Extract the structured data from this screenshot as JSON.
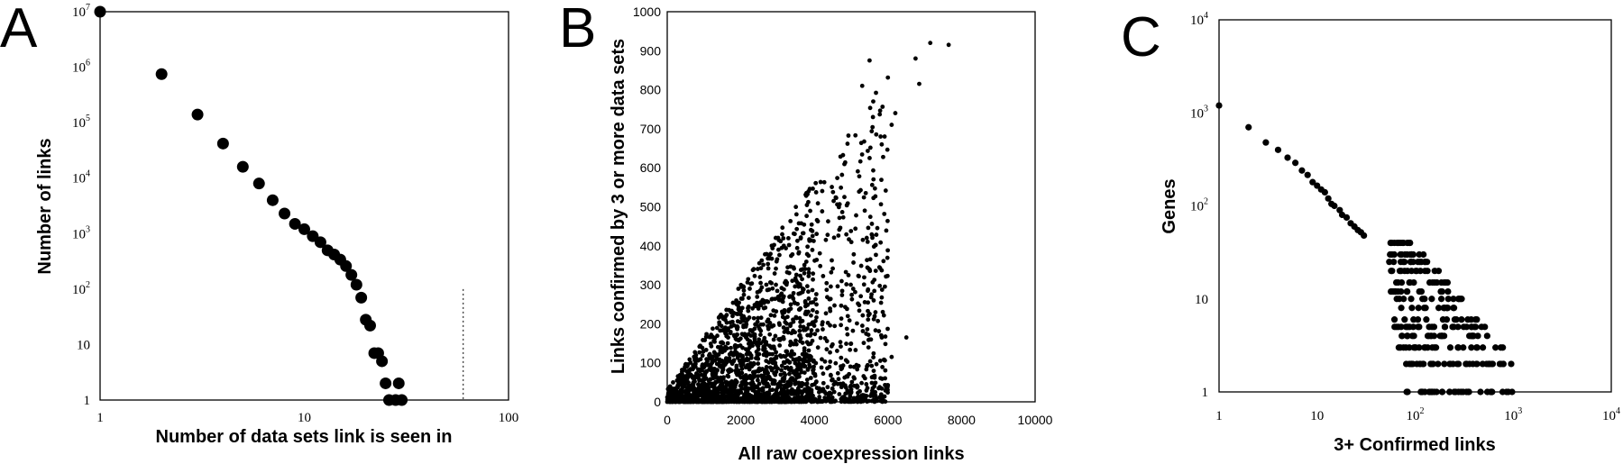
{
  "chart_data": [
    {
      "panel": "A",
      "type": "scatter",
      "xlabel": "Number of data sets link is seen in",
      "ylabel": "Number of links",
      "xscale": "log",
      "yscale": "log",
      "xlim": [
        1,
        100
      ],
      "ylim": [
        1,
        10000000
      ],
      "x_ticks": [
        {
          "base": "1",
          "exp": ""
        },
        {
          "base": "10",
          "exp": ""
        },
        {
          "base": "100",
          "exp": ""
        }
      ],
      "y_ticks": [
        {
          "base": "1",
          "exp": ""
        },
        {
          "base": "10",
          "exp": ""
        },
        {
          "base": "10",
          "exp": "2"
        },
        {
          "base": "10",
          "exp": "3"
        },
        {
          "base": "10",
          "exp": "4"
        },
        {
          "base": "10",
          "exp": "5"
        },
        {
          "base": "10",
          "exp": "6"
        },
        {
          "base": "10",
          "exp": "7"
        }
      ],
      "reference_line_x": 60,
      "points": [
        [
          1,
          10000000
        ],
        [
          2,
          750000
        ],
        [
          3,
          140000
        ],
        [
          4,
          42000
        ],
        [
          5,
          16000
        ],
        [
          6,
          8000
        ],
        [
          7,
          4000
        ],
        [
          8,
          2300
        ],
        [
          9,
          1500
        ],
        [
          10,
          1200
        ],
        [
          11,
          900
        ],
        [
          12,
          700
        ],
        [
          13,
          500
        ],
        [
          14,
          420
        ],
        [
          15,
          340
        ],
        [
          16,
          260
        ],
        [
          17,
          180
        ],
        [
          18,
          120
        ],
        [
          19,
          70
        ],
        [
          20,
          28
        ],
        [
          21,
          22
        ],
        [
          22,
          7
        ],
        [
          23,
          7
        ],
        [
          24,
          5
        ],
        [
          25,
          2
        ],
        [
          26,
          1
        ],
        [
          28,
          1
        ],
        [
          29,
          2
        ],
        [
          30,
          1
        ]
      ]
    },
    {
      "panel": "B",
      "type": "scatter",
      "xlabel": "All raw coexpression links",
      "ylabel": "Links confirmed by 3 or more data sets",
      "xlim": [
        0,
        10000
      ],
      "ylim": [
        0,
        1000
      ],
      "x_ticks": [
        "0",
        "2000",
        "4000",
        "6000",
        "8000",
        "10000"
      ],
      "y_ticks": [
        "0",
        "100",
        "200",
        "300",
        "400",
        "500",
        "600",
        "700",
        "800",
        "900",
        "1000"
      ],
      "notable_points": [
        [
          7150,
          920
        ],
        [
          7650,
          915
        ],
        [
          6750,
          880
        ],
        [
          6850,
          815
        ],
        [
          5500,
          875
        ],
        [
          5300,
          810
        ],
        [
          5600,
          770
        ],
        [
          6200,
          740
        ],
        [
          6100,
          710
        ],
        [
          5800,
          680
        ],
        [
          6500,
          165
        ],
        [
          6100,
          115
        ],
        [
          5500,
          160
        ]
      ],
      "density_summary": "dense cloud of points near origin extending to roughly (6000, 600) with upper envelope y ≈ 0.13·x"
    },
    {
      "panel": "C",
      "type": "scatter",
      "xlabel": "3+ Confirmed links",
      "ylabel": "Genes",
      "xscale": "log",
      "yscale": "log",
      "xlim": [
        1,
        10000
      ],
      "ylim": [
        1,
        10000
      ],
      "x_ticks": [
        {
          "base": "1",
          "exp": ""
        },
        {
          "base": "10",
          "exp": ""
        },
        {
          "base": "10",
          "exp": "2"
        },
        {
          "base": "10",
          "exp": "3"
        },
        {
          "base": "10",
          "exp": "4"
        }
      ],
      "y_ticks": [
        {
          "base": "1",
          "exp": ""
        },
        {
          "base": "10",
          "exp": ""
        },
        {
          "base": "10",
          "exp": "2"
        },
        {
          "base": "10",
          "exp": "3"
        },
        {
          "base": "10",
          "exp": "4"
        }
      ],
      "points": [
        [
          1,
          1200
        ],
        [
          2,
          700
        ],
        [
          3,
          480
        ],
        [
          4,
          400
        ],
        [
          5,
          330
        ],
        [
          6,
          290
        ],
        [
          7,
          240
        ],
        [
          8,
          215
        ],
        [
          9,
          180
        ],
        [
          10,
          165
        ],
        [
          11,
          150
        ],
        [
          12,
          140
        ],
        [
          13,
          120
        ],
        [
          14,
          105
        ],
        [
          15,
          100
        ],
        [
          17,
          90
        ],
        [
          18,
          80
        ],
        [
          20,
          75
        ],
        [
          22,
          65
        ],
        [
          24,
          60
        ],
        [
          26,
          55
        ],
        [
          28,
          52
        ],
        [
          30,
          48
        ]
      ],
      "band_levels": [
        40,
        30,
        25,
        20,
        15,
        12,
        10,
        8,
        6,
        5,
        4,
        3,
        2,
        1
      ]
    }
  ]
}
